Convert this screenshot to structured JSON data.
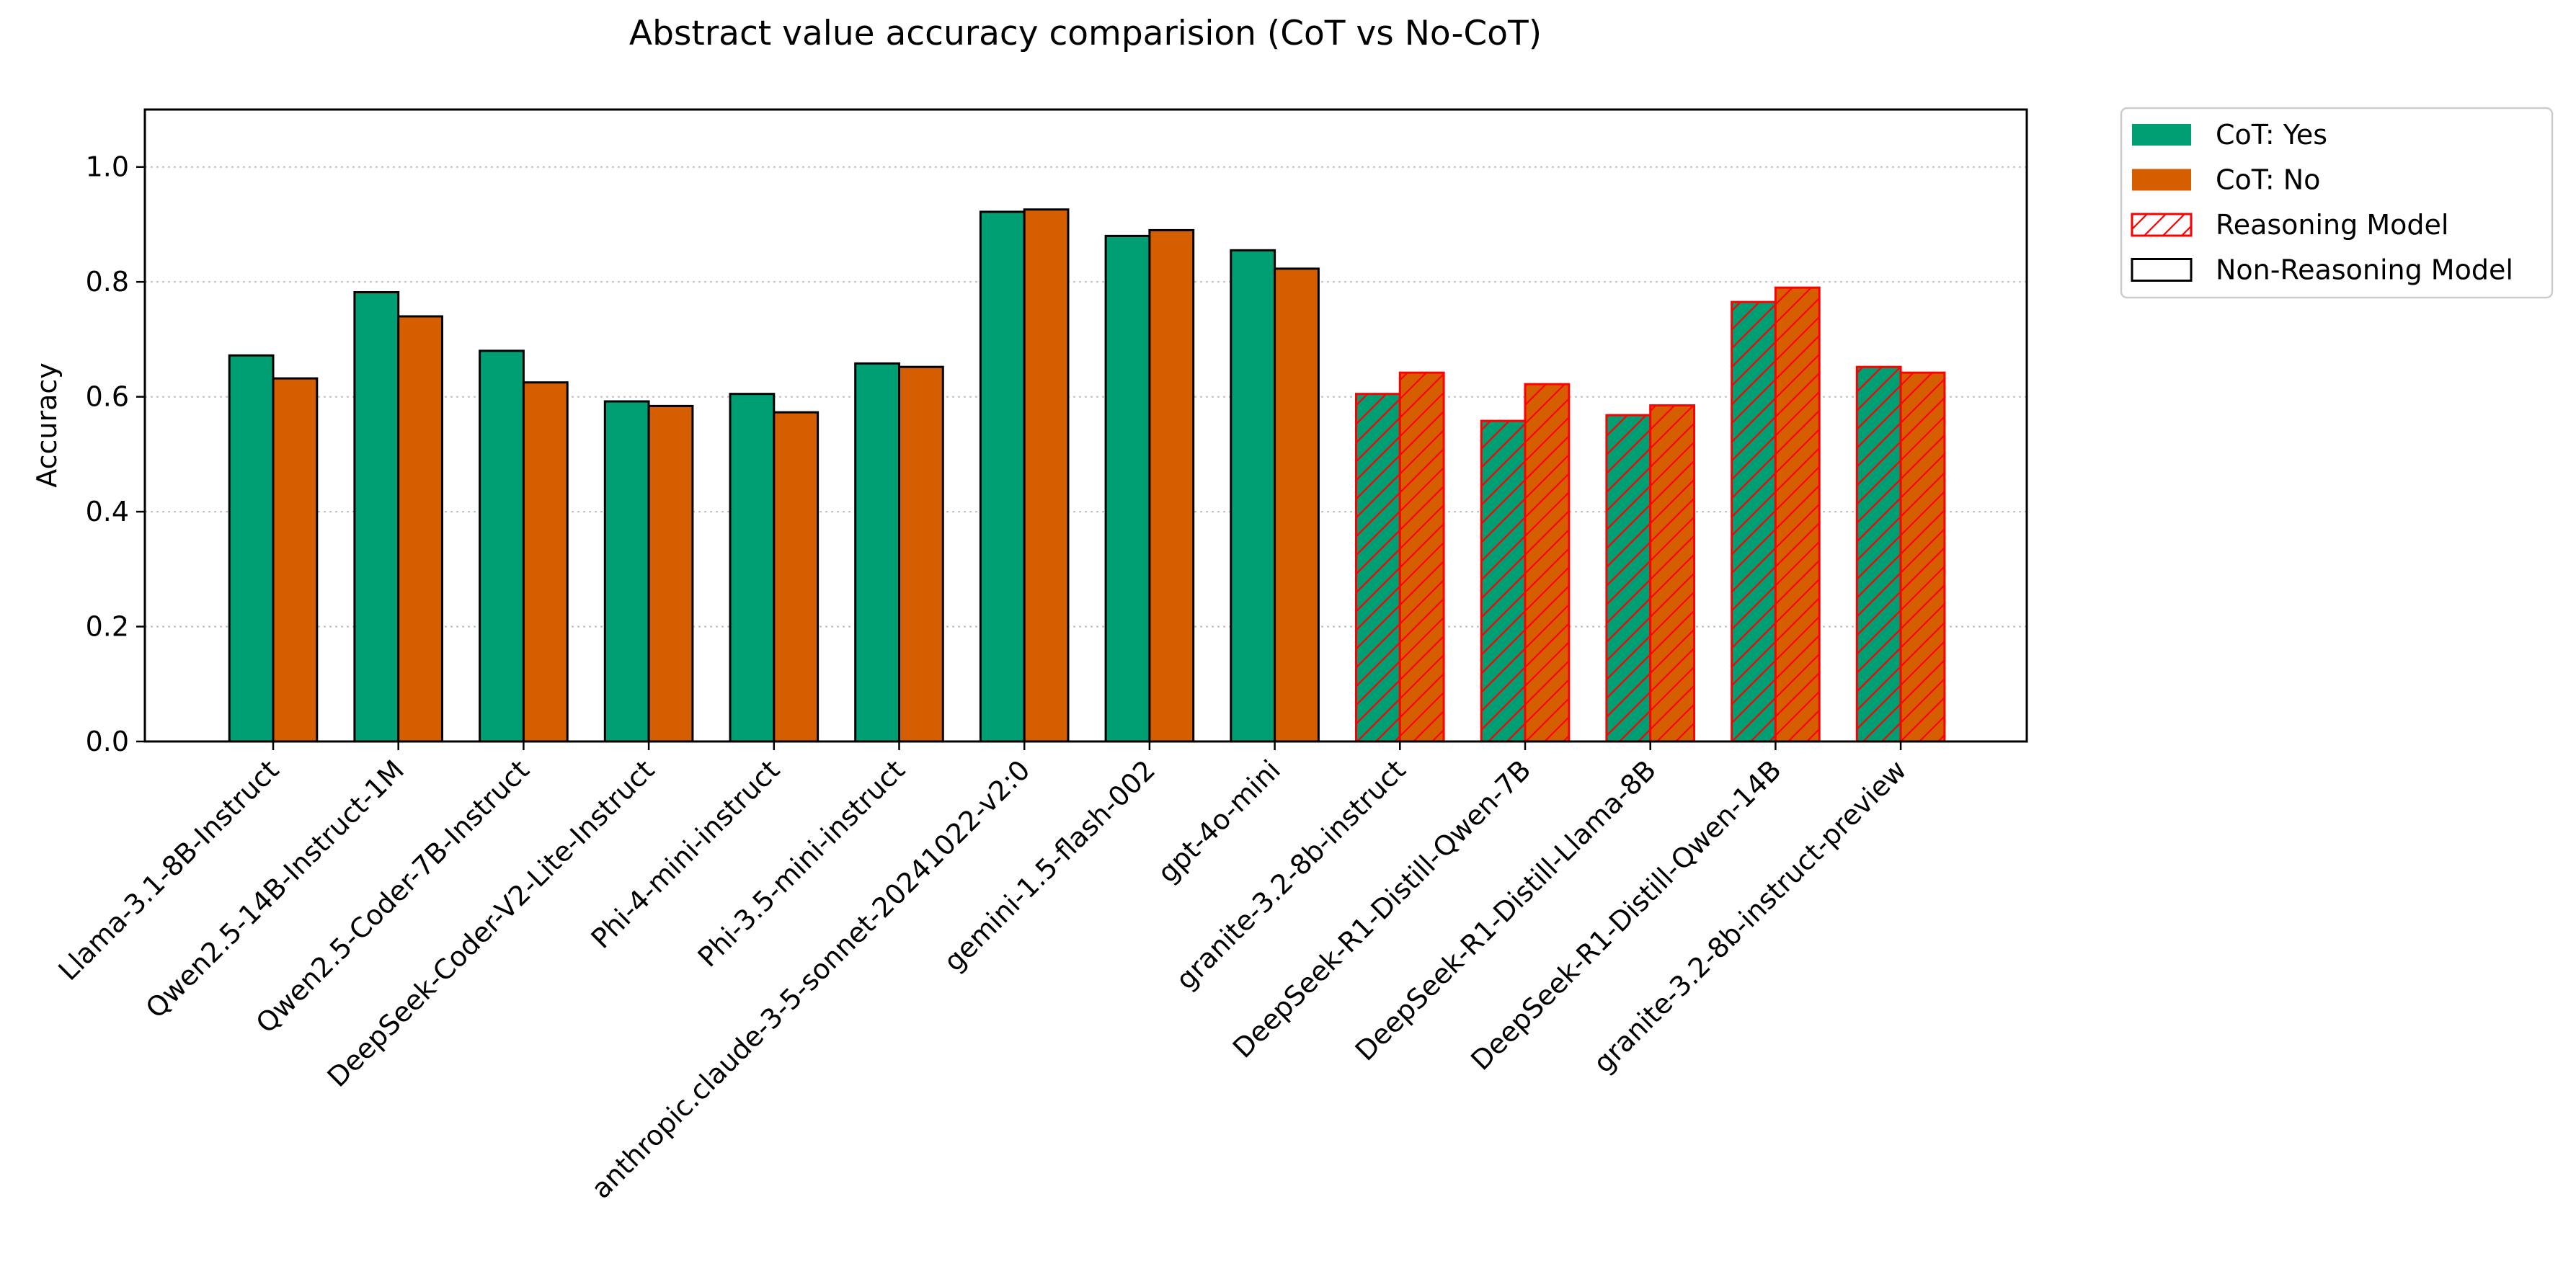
{
  "chart_data": {
    "type": "bar",
    "title": "Abstract value accuracy comparision (CoT vs No-CoT)",
    "xlabel": "",
    "ylabel": "Accuracy",
    "ylim": [
      0,
      1.1
    ],
    "yticks": [
      0.0,
      0.2,
      0.4,
      0.6,
      0.8,
      1.0
    ],
    "ytick_labels": [
      "0.0",
      "0.2",
      "0.4",
      "0.6",
      "0.8",
      "1.0"
    ],
    "grid": "horizontal dotted",
    "legend_position": "outside top-right",
    "categories": [
      "Llama-3.1-8B-Instruct",
      "Qwen2.5-14B-Instruct-1M",
      "Qwen2.5-Coder-7B-Instruct",
      "DeepSeek-Coder-V2-Lite-Instruct",
      "Phi-4-mini-instruct",
      "Phi-3.5-mini-instruct",
      "anthropic.claude-3-5-sonnet-20241022-v2:0",
      "gemini-1.5-flash-002",
      "gpt-4o-mini",
      "granite-3.2-8b-instruct",
      "DeepSeek-R1-Distill-Qwen-7B",
      "DeepSeek-R1-Distill-Llama-8B",
      "DeepSeek-R1-Distill-Qwen-14B",
      "granite-3.2-8b-instruct-preview"
    ],
    "reasoning_model": [
      false,
      false,
      false,
      false,
      false,
      false,
      false,
      false,
      false,
      true,
      true,
      true,
      true,
      true
    ],
    "series": [
      {
        "name": "CoT: Yes",
        "color": "#009E73",
        "values": [
          0.672,
          0.782,
          0.68,
          0.592,
          0.605,
          0.658,
          0.922,
          0.88,
          0.855,
          0.605,
          0.558,
          0.568,
          0.765,
          0.652
        ]
      },
      {
        "name": "CoT: No",
        "color": "#D55E00",
        "values": [
          0.632,
          0.74,
          0.625,
          0.584,
          0.573,
          0.652,
          0.926,
          0.89,
          0.823,
          0.642,
          0.622,
          0.585,
          0.79,
          0.642
        ]
      }
    ],
    "legend": [
      {
        "label": "CoT: Yes",
        "kind": "fill",
        "color": "#009E73"
      },
      {
        "label": "CoT: No",
        "kind": "fill",
        "color": "#D55E00"
      },
      {
        "label": "Reasoning Model",
        "kind": "hatch",
        "color": "#FF0000"
      },
      {
        "label": "Non-Reasoning Model",
        "kind": "outline",
        "color": "#000000"
      }
    ]
  }
}
